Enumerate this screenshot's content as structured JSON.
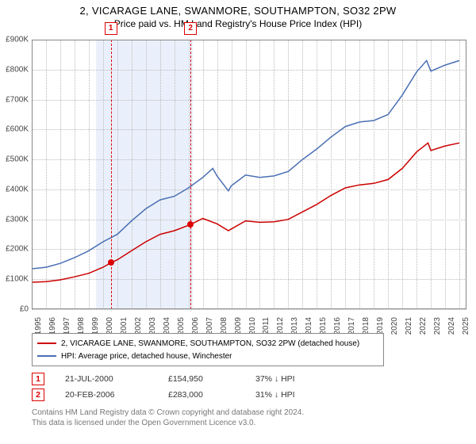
{
  "titles": {
    "line1": "2, VICARAGE LANE, SWANMORE, SOUTHAMPTON, SO32 2PW",
    "line2": "Price paid vs. HM Land Registry's House Price Index (HPI)"
  },
  "chart": {
    "type": "line",
    "background_color": "#ffffff",
    "grid_color": "#bbbbbb",
    "border_color": "#888888",
    "xlim": [
      1995,
      2025.5
    ],
    "ylim": [
      0,
      900000
    ],
    "ytick_step": 100000,
    "yticks": [
      {
        "v": 0,
        "label": "£0"
      },
      {
        "v": 100000,
        "label": "£100K"
      },
      {
        "v": 200000,
        "label": "£200K"
      },
      {
        "v": 300000,
        "label": "£300K"
      },
      {
        "v": 400000,
        "label": "£400K"
      },
      {
        "v": 500000,
        "label": "£500K"
      },
      {
        "v": 600000,
        "label": "£600K"
      },
      {
        "v": 700000,
        "label": "£700K"
      },
      {
        "v": 800000,
        "label": "£800K"
      },
      {
        "v": 900000,
        "label": "£900K"
      }
    ],
    "xticks": [
      1995,
      1996,
      1997,
      1998,
      1999,
      2000,
      2001,
      2002,
      2003,
      2004,
      2005,
      2006,
      2007,
      2008,
      2009,
      2010,
      2011,
      2012,
      2013,
      2014,
      2015,
      2016,
      2017,
      2018,
      2019,
      2020,
      2021,
      2022,
      2023,
      2024,
      2025
    ],
    "bands": [
      {
        "from": 1999.5,
        "to": 2006.3,
        "color": "#eaf0fb"
      }
    ],
    "markers": [
      {
        "id": "1",
        "x": 2000.55,
        "y": 154950
      },
      {
        "id": "2",
        "x": 2006.14,
        "y": 283000
      }
    ],
    "series": [
      {
        "name": "property",
        "color": "#cc0000",
        "width": 1.5,
        "label": "2, VICARAGE LANE, SWANMORE, SOUTHAMPTON, SO32 2PW (detached house)",
        "points": [
          [
            1995,
            90000
          ],
          [
            1996,
            92000
          ],
          [
            1997,
            98000
          ],
          [
            1998,
            108000
          ],
          [
            1999,
            120000
          ],
          [
            2000,
            140000
          ],
          [
            2000.55,
            154950
          ],
          [
            2001,
            165000
          ],
          [
            2002,
            195000
          ],
          [
            2003,
            225000
          ],
          [
            2004,
            250000
          ],
          [
            2005,
            262000
          ],
          [
            2006,
            280000
          ],
          [
            2006.14,
            283000
          ],
          [
            2007,
            303000
          ],
          [
            2008,
            285000
          ],
          [
            2008.8,
            262000
          ],
          [
            2009,
            268000
          ],
          [
            2010,
            295000
          ],
          [
            2011,
            290000
          ],
          [
            2012,
            292000
          ],
          [
            2013,
            300000
          ],
          [
            2014,
            325000
          ],
          [
            2015,
            350000
          ],
          [
            2016,
            380000
          ],
          [
            2017,
            405000
          ],
          [
            2018,
            415000
          ],
          [
            2019,
            420000
          ],
          [
            2020,
            433000
          ],
          [
            2021,
            470000
          ],
          [
            2022,
            525000
          ],
          [
            2022.8,
            555000
          ],
          [
            2023,
            530000
          ],
          [
            2024,
            545000
          ],
          [
            2025,
            555000
          ]
        ]
      },
      {
        "name": "hpi",
        "color": "#4a6fb3",
        "width": 1.5,
        "label": "HPI: Average price, detached house, Winchester",
        "points": [
          [
            1995,
            135000
          ],
          [
            1996,
            140000
          ],
          [
            1997,
            153000
          ],
          [
            1998,
            172000
          ],
          [
            1999,
            195000
          ],
          [
            2000,
            225000
          ],
          [
            2001,
            250000
          ],
          [
            2002,
            295000
          ],
          [
            2003,
            335000
          ],
          [
            2004,
            365000
          ],
          [
            2005,
            377000
          ],
          [
            2006,
            405000
          ],
          [
            2007,
            440000
          ],
          [
            2007.7,
            470000
          ],
          [
            2008,
            445000
          ],
          [
            2008.8,
            395000
          ],
          [
            2009,
            412000
          ],
          [
            2010,
            448000
          ],
          [
            2011,
            440000
          ],
          [
            2012,
            445000
          ],
          [
            2013,
            460000
          ],
          [
            2014,
            500000
          ],
          [
            2015,
            535000
          ],
          [
            2016,
            575000
          ],
          [
            2017,
            610000
          ],
          [
            2018,
            625000
          ],
          [
            2019,
            630000
          ],
          [
            2020,
            650000
          ],
          [
            2021,
            715000
          ],
          [
            2022,
            792000
          ],
          [
            2022.7,
            830000
          ],
          [
            2023,
            795000
          ],
          [
            2024,
            815000
          ],
          [
            2025,
            830000
          ]
        ]
      }
    ]
  },
  "legend": {
    "items": [
      {
        "color": "#cc0000",
        "label": "2, VICARAGE LANE, SWANMORE, SOUTHAMPTON, SO32 2PW (detached house)"
      },
      {
        "color": "#4a6fb3",
        "label": "HPI: Average price, detached house, Winchester"
      }
    ]
  },
  "transactions": [
    {
      "id": "1",
      "date": "21-JUL-2000",
      "price": "£154,950",
      "pct": "37% ↓ HPI"
    },
    {
      "id": "2",
      "date": "20-FEB-2006",
      "price": "£283,000",
      "pct": "31% ↓ HPI"
    }
  ],
  "footer": {
    "line1": "Contains HM Land Registry data © Crown copyright and database right 2024.",
    "line2": "This data is licensed under the Open Government Licence v3.0."
  }
}
